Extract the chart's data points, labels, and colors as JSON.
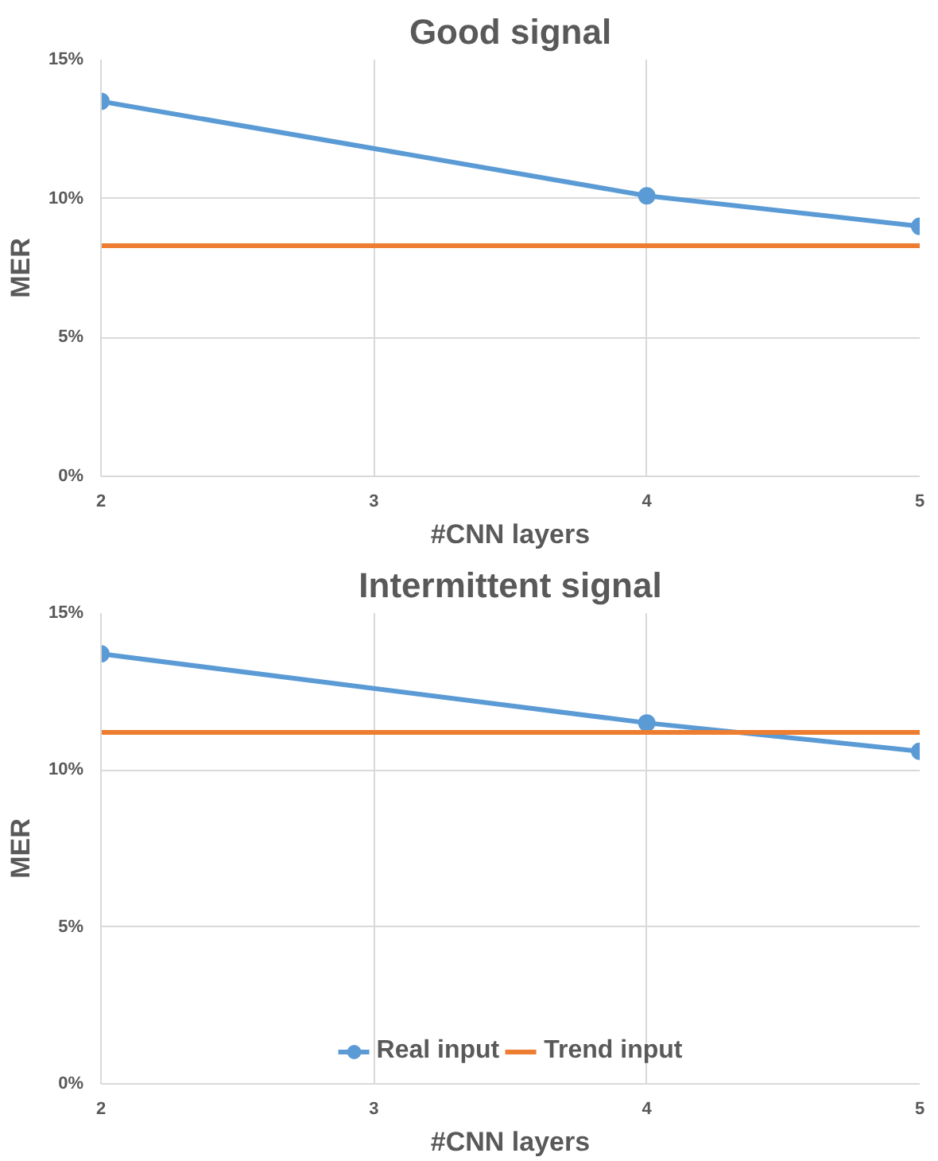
{
  "chart_data": [
    {
      "type": "line",
      "title": "Good signal",
      "xlabel": "#CNN layers",
      "ylabel": "MER",
      "xlim": [
        2,
        5
      ],
      "xticks": [
        2,
        3,
        4,
        5
      ],
      "ylim": [
        0,
        15
      ],
      "yticks": [
        {
          "value": 0,
          "label": "0%"
        },
        {
          "value": 5,
          "label": "5%"
        },
        {
          "value": 10,
          "label": "10%"
        },
        {
          "value": 15,
          "label": "15%"
        }
      ],
      "grid": true,
      "legend": false,
      "series": [
        {
          "color": "#5b9bd5",
          "x": [
            2,
            4,
            5
          ],
          "values": [
            13.5,
            10.1,
            9.0
          ],
          "marker": "circle"
        },
        {
          "color": "#ed7d31",
          "x": [
            2,
            5
          ],
          "values": [
            8.3,
            8.3
          ],
          "marker": "none"
        }
      ]
    },
    {
      "type": "line",
      "title": "Intermittent signal",
      "xlabel": "#CNN layers",
      "ylabel": "MER",
      "xlim": [
        2,
        5
      ],
      "xticks": [
        2,
        3,
        4,
        5
      ],
      "ylim": [
        0,
        15
      ],
      "yticks": [
        {
          "value": 0,
          "label": "0%"
        },
        {
          "value": 5,
          "label": "5%"
        },
        {
          "value": 10,
          "label": "10%"
        },
        {
          "value": 15,
          "label": "15%"
        }
      ],
      "grid": true,
      "legend": "bottom",
      "series": [
        {
          "name": "Real input",
          "color": "#5b9bd5",
          "x": [
            2,
            4,
            5
          ],
          "values": [
            13.7,
            11.5,
            10.6
          ],
          "marker": "circle"
        },
        {
          "name": "Trend input",
          "color": "#ed7d31",
          "x": [
            2,
            5
          ],
          "values": [
            11.2,
            11.2
          ],
          "marker": "none"
        }
      ]
    }
  ]
}
